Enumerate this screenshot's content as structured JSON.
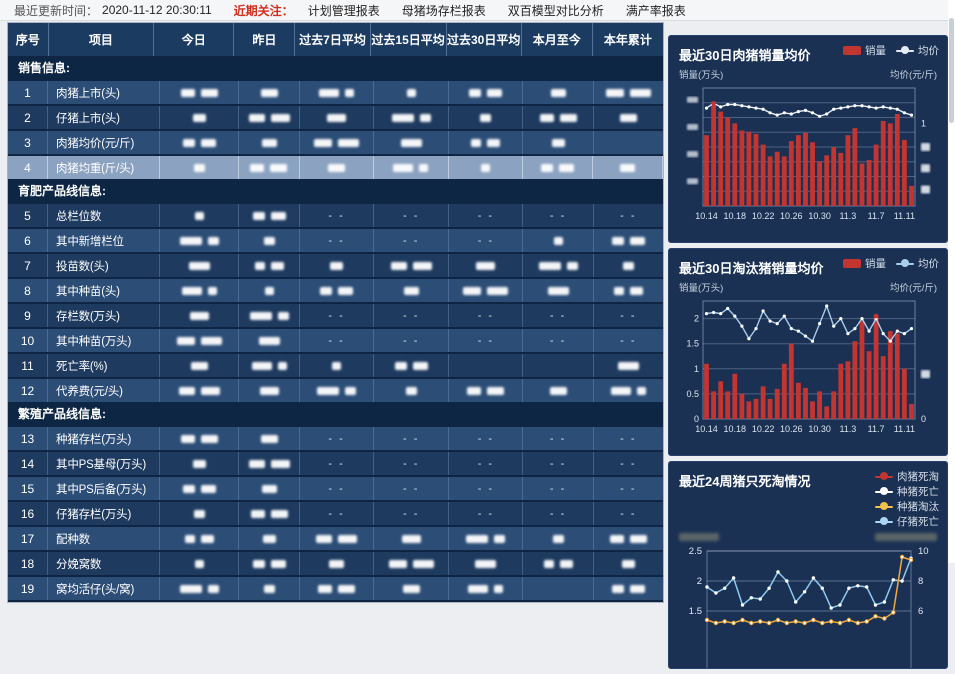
{
  "topbar": {
    "update_label": "最近更新时间：",
    "update_time": "2020-11-12 20:30:11",
    "focus_label": "近期关注：",
    "links": [
      "计划管理报表",
      "母猪场存栏报表",
      "双百模型对比分析",
      "满产率报表"
    ]
  },
  "table": {
    "dash_text": "- -",
    "columns": [
      "序号",
      "项目",
      "今日",
      "昨日",
      "过去7日平均",
      "过去15日平均",
      "过去30日平均",
      "本月至今",
      "本年累计"
    ],
    "rows": [
      {
        "section": "销售信息:"
      },
      {
        "num": "1",
        "label": "肉猪上市(头)",
        "tone": "a",
        "cells": [
          "b",
          "b",
          "b",
          "b",
          "b",
          "b",
          "b"
        ]
      },
      {
        "num": "2",
        "label": "仔猪上市(头)",
        "tone": "b",
        "cells": [
          "b",
          "b",
          "b",
          "b",
          "b",
          "b",
          "b"
        ]
      },
      {
        "num": "3",
        "label": "肉猪均价(元/斤)",
        "tone": "a",
        "cells": [
          "b",
          "b",
          "b",
          "b",
          "b",
          "b",
          "e"
        ]
      },
      {
        "num": "4",
        "label": "肉猪均重(斤/头)",
        "tone": "b",
        "highlight": true,
        "cells": [
          "b",
          "b",
          "b",
          "b",
          "b",
          "b",
          "b"
        ]
      },
      {
        "section": "育肥产品线信息:"
      },
      {
        "num": "5",
        "label": "总栏位数",
        "tone": "b",
        "cells": [
          "b",
          "b",
          "d",
          "d",
          "d",
          "d",
          "d"
        ]
      },
      {
        "num": "6",
        "label": "其中新增栏位",
        "tone": "a",
        "cells": [
          "b",
          "b",
          "d",
          "d",
          "d",
          "b",
          "b"
        ]
      },
      {
        "num": "7",
        "label": "投苗数(头)",
        "tone": "b",
        "cells": [
          "b",
          "b",
          "b",
          "b",
          "b",
          "b",
          "b"
        ]
      },
      {
        "num": "8",
        "label": "其中种苗(头)",
        "tone": "a",
        "cells": [
          "b",
          "b",
          "b",
          "b",
          "b",
          "b",
          "b"
        ]
      },
      {
        "num": "9",
        "label": "存栏数(万头)",
        "tone": "b",
        "cells": [
          "b",
          "b",
          "d",
          "d",
          "d",
          "d",
          "d"
        ]
      },
      {
        "num": "10",
        "label": "其中种苗(万头)",
        "tone": "a",
        "cells": [
          "b",
          "b",
          "d",
          "d",
          "d",
          "d",
          "d"
        ]
      },
      {
        "num": "11",
        "label": "死亡率(%)",
        "tone": "b",
        "cells": [
          "b",
          "b",
          "b",
          "b",
          "e",
          "e",
          "b"
        ]
      },
      {
        "num": "12",
        "label": "代养费(元/头)",
        "tone": "a",
        "cells": [
          "b",
          "b",
          "b",
          "b",
          "b",
          "b",
          "b"
        ]
      },
      {
        "section": "繁殖产品线信息:"
      },
      {
        "num": "13",
        "label": "种猪存栏(万头)",
        "tone": "a",
        "cells": [
          "b",
          "b",
          "d",
          "d",
          "d",
          "d",
          "d"
        ]
      },
      {
        "num": "14",
        "label": "其中PS基母(万头)",
        "tone": "b",
        "cells": [
          "b",
          "b",
          "d",
          "d",
          "d",
          "d",
          "d"
        ]
      },
      {
        "num": "15",
        "label": "其中PS后备(万头)",
        "tone": "a",
        "cells": [
          "b",
          "b",
          "d",
          "d",
          "d",
          "d",
          "d"
        ]
      },
      {
        "num": "16",
        "label": "仔猪存栏(万头)",
        "tone": "b",
        "cells": [
          "b",
          "b",
          "d",
          "d",
          "d",
          "d",
          "d"
        ]
      },
      {
        "num": "17",
        "label": "配种数",
        "tone": "a",
        "cells": [
          "b",
          "b",
          "b",
          "b",
          "b",
          "b",
          "b"
        ]
      },
      {
        "num": "18",
        "label": "分娩窝数",
        "tone": "b",
        "cells": [
          "b",
          "b",
          "b",
          "b",
          "b",
          "b",
          "b"
        ]
      },
      {
        "num": "19",
        "label": "窝均活仔(头/窝)",
        "tone": "a",
        "cells": [
          "b",
          "b",
          "b",
          "b",
          "b",
          "e",
          "b"
        ]
      }
    ]
  },
  "chart_data": [
    {
      "type": "bar",
      "title": "最近30日肉猪销量均价",
      "legend": [
        {
          "label": "销量",
          "glyph": "bar",
          "color": "#c23531"
        },
        {
          "label": "均价",
          "glyph": "line",
          "color": "#e4ebf3"
        }
      ],
      "y_left_label": "销量(万头)",
      "y_right_label": "均价(元/斤)",
      "x_tick_labels": [
        "10.14",
        "10.18",
        "10.22",
        "10.26",
        "10.30",
        "11.3",
        "11.7",
        "11.11"
      ],
      "x_tick_every": 4,
      "y_left_ticks_redacted": true,
      "y_right_tick_visible": "1",
      "bars": {
        "name": "销量",
        "color": "#c23531",
        "values": [
          60,
          88,
          80,
          75,
          70,
          64,
          63,
          61,
          52,
          42,
          46,
          42,
          55,
          60,
          62,
          54,
          38,
          43,
          50,
          45,
          60,
          66,
          36,
          39,
          52,
          72,
          70,
          78,
          56,
          17
        ]
      },
      "line": {
        "name": "均价",
        "color": "#e4ebf3",
        "highlight_index": 1,
        "highlight_color": "#c23531",
        "values": [
          83,
          87,
          84,
          86,
          86,
          85,
          84,
          83,
          82,
          79,
          77,
          79,
          78,
          80,
          81,
          79,
          76,
          78,
          82,
          83,
          84,
          85,
          85,
          84,
          83,
          84,
          83,
          82,
          79,
          77
        ]
      }
    },
    {
      "type": "bar",
      "title": "最近30日淘汰猪销量均价",
      "legend": [
        {
          "label": "销量",
          "glyph": "bar",
          "color": "#c23531"
        },
        {
          "label": "均价",
          "glyph": "line",
          "color": "#a9cde9"
        }
      ],
      "y_left_label": "销量(万头)",
      "y_right_label": "均价(元/斤)",
      "x_tick_labels": [
        "10.14",
        "10.18",
        "10.22",
        "10.26",
        "10.30",
        "11.3",
        "11.7",
        "11.11"
      ],
      "x_tick_every": 4,
      "y_left_ticks": [
        "2",
        "1.5",
        "1",
        "0.5",
        "0"
      ],
      "y_left_max": 2.35,
      "y_right_tick_visible": "0",
      "bars": {
        "name": "销量",
        "color": "#c23531",
        "peak_marker_index": 24,
        "values": [
          1.1,
          0.55,
          0.75,
          0.55,
          0.9,
          0.5,
          0.35,
          0.4,
          0.65,
          0.4,
          0.6,
          1.1,
          1.5,
          0.72,
          0.62,
          0.35,
          0.55,
          0.25,
          0.55,
          1.1,
          1.15,
          1.55,
          1.95,
          1.35,
          2.05,
          1.25,
          1.75,
          1.7,
          1.0,
          0.3
        ]
      },
      "line": {
        "name": "均价",
        "color": "#a9cde9",
        "values": [
          2.1,
          2.12,
          2.1,
          2.2,
          2.05,
          1.85,
          1.6,
          1.8,
          2.15,
          1.95,
          1.9,
          2.05,
          1.8,
          1.75,
          1.65,
          1.55,
          1.9,
          2.25,
          1.85,
          2.0,
          1.7,
          1.8,
          2.0,
          1.75,
          2.0,
          1.7,
          1.55,
          1.75,
          1.7,
          1.8
        ]
      }
    },
    {
      "type": "line",
      "title": "最近24周猪只死淘情况",
      "legend": [
        {
          "label": "肉猪死淘",
          "glyph": "line",
          "color": "#c23531"
        },
        {
          "label": "种猪死亡",
          "glyph": "line",
          "color": "#ffffff"
        },
        {
          "label": "种猪淘汰",
          "glyph": "line",
          "color": "#f3c24b"
        },
        {
          "label": "仔猪死亡",
          "glyph": "line",
          "color": "#a9d6f5"
        }
      ],
      "axis_titles_redacted": true,
      "y_left_ticks": [
        "2.5",
        "2",
        "1.5"
      ],
      "y_right_ticks": [
        "10",
        "8",
        "6"
      ],
      "weeks": 24,
      "series": [
        {
          "name": "仔猪死亡",
          "color": "#8ec9ef",
          "axis": "left",
          "values": [
            1.9,
            1.8,
            1.88,
            2.05,
            1.6,
            1.72,
            1.7,
            1.88,
            2.15,
            2.0,
            1.65,
            1.82,
            2.05,
            1.88,
            1.55,
            1.6,
            1.88,
            1.92,
            1.9,
            1.6,
            1.65,
            2.02,
            2.0,
            2.38
          ]
        },
        {
          "name": "种猪淘汰",
          "color": "#f2a93b",
          "axis": "right",
          "values": [
            5.4,
            5.2,
            5.3,
            5.2,
            5.4,
            5.2,
            5.3,
            5.2,
            5.4,
            5.2,
            5.3,
            5.2,
            5.4,
            5.2,
            5.3,
            5.2,
            5.4,
            5.2,
            5.3,
            5.65,
            5.5,
            5.9,
            9.6,
            9.4
          ]
        }
      ]
    }
  ]
}
